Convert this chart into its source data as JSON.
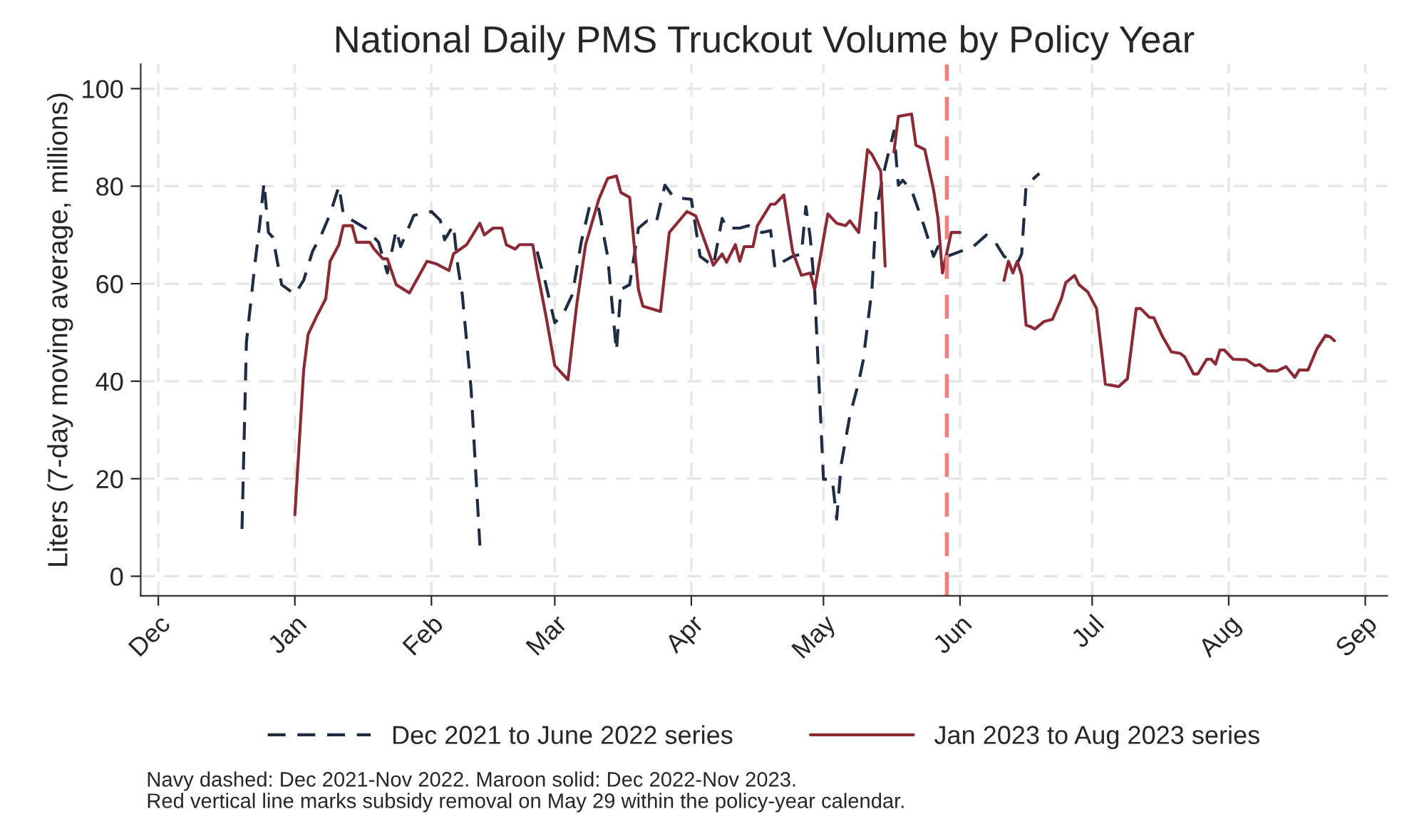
{
  "chart_data": {
    "type": "line",
    "title": "National Daily PMS Truckout Volume by Policy Year",
    "ylabel": "Liters (7-day moving average, millions)",
    "xlim": [
      "2022-11-27",
      "2023-09-06"
    ],
    "xticks": [
      {
        "value": "2022-12-01",
        "label": "Dec"
      },
      {
        "value": "2023-01-01",
        "label": "Jan"
      },
      {
        "value": "2023-02-01",
        "label": "Feb"
      },
      {
        "value": "2023-03-01",
        "label": "Mar"
      },
      {
        "value": "2023-04-01",
        "label": "Apr"
      },
      {
        "value": "2023-05-01",
        "label": "May"
      },
      {
        "value": "2023-06-01",
        "label": "Jun"
      },
      {
        "value": "2023-07-01",
        "label": "Jul"
      },
      {
        "value": "2023-08-01",
        "label": "Aug"
      },
      {
        "value": "2023-09-01",
        "label": "Sep"
      }
    ],
    "ylim": [
      -4,
      105
    ],
    "yticks": [
      0,
      20,
      40,
      60,
      80,
      100
    ],
    "grid": true,
    "legend": "bottom",
    "series": [
      {
        "name": "Dec 2021 to June 2022 series",
        "color": "#1f2d44",
        "line_style": "dashed",
        "x": [
          "2022-12-20",
          "2022-12-21",
          "2022-12-23",
          "2022-12-24",
          "2022-12-25",
          "2022-12-26",
          "2022-12-27",
          "2022-12-29",
          "2023-01-01",
          "2023-01-03",
          "2023-01-05",
          "2023-01-07",
          "2023-01-09",
          "2023-01-11",
          "2023-01-12",
          "2023-01-14",
          "2023-01-17",
          "2023-01-20",
          "2023-01-22",
          "2023-01-24",
          "2023-01-25",
          "2023-01-28",
          "2023-02-01",
          "2023-02-03",
          "2023-02-04",
          "2023-02-06",
          "2023-02-07",
          "2023-02-08",
          "2023-02-10",
          "2023-02-12",
          "2023-02-18",
          "2023-02-25",
          "2023-02-27",
          "2023-03-01",
          "2023-03-03",
          "2023-03-05",
          "2023-03-07",
          "2023-03-09",
          "2023-03-11",
          "2023-03-13",
          "2023-03-15",
          "2023-03-16",
          "2023-03-18",
          "2023-03-20",
          "2023-03-22",
          "2023-03-24",
          "2023-03-26",
          "2023-03-28",
          "2023-04-01",
          "2023-04-03",
          "2023-04-06",
          "2023-04-08",
          "2023-04-09",
          "2023-04-12",
          "2023-04-14",
          "2023-04-17",
          "2023-04-19",
          "2023-04-20",
          "2023-04-22",
          "2023-04-24",
          "2023-04-26",
          "2023-04-27",
          "2023-04-28",
          "2023-04-29",
          "2023-05-01",
          "2023-05-03",
          "2023-05-04",
          "2023-05-05",
          "2023-05-07",
          "2023-05-09",
          "2023-05-10",
          "2023-05-12",
          "2023-05-13",
          "2023-05-15",
          "2023-05-17",
          "2023-05-18",
          "2023-05-19",
          "2023-05-21",
          "2023-05-24",
          "2023-05-26",
          "2023-05-27",
          "2023-05-29",
          "2023-06-01",
          "2023-06-04",
          "2023-06-07",
          "2023-06-09",
          "2023-06-11",
          "2023-06-14",
          "2023-06-15",
          "2023-06-16",
          "2023-06-19"
        ],
        "values": [
          9.7,
          48,
          64.6,
          72,
          80.7,
          70.5,
          69.5,
          59.8,
          57.8,
          60.7,
          66.6,
          70,
          74.3,
          80,
          74.3,
          73,
          71.4,
          68.5,
          62.2,
          71,
          67.6,
          74,
          74.8,
          73,
          69,
          72,
          63.6,
          57.8,
          38.4,
          6.3,
          null,
          66.6,
          59.8,
          52,
          53.9,
          57.8,
          68.5,
          76.3,
          75.3,
          65.6,
          46.2,
          58.8,
          59.8,
          71.4,
          72.9,
          72.4,
          80.2,
          77.7,
          77.3,
          65.6,
          63.6,
          73.4,
          71.4,
          71.4,
          71.9,
          70.5,
          70.9,
          63.1,
          64.6,
          65.6,
          66.1,
          75.8,
          69.5,
          58.8,
          19.9,
          19.9,
          11.7,
          22.8,
          33,
          39.8,
          44.2,
          58.8,
          75.3,
          84,
          91.3,
          80.2,
          81.2,
          79.2,
          71.4,
          65.6,
          67.6,
          65.6,
          66.6,
          67.6,
          70,
          68.5,
          65.6,
          64.1,
          66.1,
          80.2,
          82.6
        ]
      },
      {
        "name": "Jan 2023 to Aug 2023 series",
        "color": "#8b2a35",
        "line_style": "solid",
        "x": [
          "2023-01-01",
          "2023-01-03",
          "2023-01-04",
          "2023-01-06",
          "2023-01-08",
          "2023-01-09",
          "2023-01-11",
          "2023-01-12",
          "2023-01-14",
          "2023-01-15",
          "2023-01-18",
          "2023-01-19",
          "2023-01-21",
          "2023-01-22",
          "2023-01-24",
          "2023-01-27",
          "2023-01-31",
          "2023-02-02",
          "2023-02-05",
          "2023-02-06",
          "2023-02-09",
          "2023-02-12",
          "2023-02-13",
          "2023-02-15",
          "2023-02-17",
          "2023-02-18",
          "2023-02-20",
          "2023-02-21",
          "2023-02-24",
          "2023-02-25",
          "2023-02-27",
          "2023-03-01",
          "2023-03-04",
          "2023-03-06",
          "2023-03-08",
          "2023-03-11",
          "2023-03-13",
          "2023-03-15",
          "2023-03-16",
          "2023-03-18",
          "2023-03-20",
          "2023-03-21",
          "2023-03-25",
          "2023-03-27",
          "2023-03-31",
          "2023-04-02",
          "2023-04-06",
          "2023-04-08",
          "2023-04-09",
          "2023-04-11",
          "2023-04-12",
          "2023-04-13",
          "2023-04-15",
          "2023-04-16",
          "2023-04-19",
          "2023-04-20",
          "2023-04-22",
          "2023-04-24",
          "2023-04-26",
          "2023-04-28",
          "2023-04-29",
          "2023-05-02",
          "2023-05-04",
          "2023-05-06",
          "2023-05-07",
          "2023-05-09",
          "2023-05-11",
          "2023-05-12",
          "2023-05-14",
          "2023-05-15",
          "2023-05-16",
          "2023-05-17",
          "2023-05-18",
          "2023-05-21",
          "2023-05-22",
          "2023-05-24",
          "2023-05-26",
          "2023-05-27",
          "2023-05-28",
          "2023-05-30",
          "2023-06-01",
          "2023-06-05",
          "2023-06-11",
          "2023-06-12",
          "2023-06-13",
          "2023-06-14",
          "2023-06-15",
          "2023-06-16",
          "2023-06-17",
          "2023-06-18",
          "2023-06-20",
          "2023-06-22",
          "2023-06-24",
          "2023-06-25",
          "2023-06-27",
          "2023-06-28",
          "2023-06-30",
          "2023-07-02",
          "2023-07-04",
          "2023-07-07",
          "2023-07-09",
          "2023-07-11",
          "2023-07-12",
          "2023-07-14",
          "2023-07-15",
          "2023-07-17",
          "2023-07-19",
          "2023-07-21",
          "2023-07-22",
          "2023-07-24",
          "2023-07-25",
          "2023-07-27",
          "2023-07-28",
          "2023-07-29",
          "2023-07-30",
          "2023-07-31",
          "2023-08-02",
          "2023-08-05",
          "2023-08-07",
          "2023-08-08",
          "2023-08-10",
          "2023-08-12",
          "2023-08-14",
          "2023-08-16",
          "2023-08-17",
          "2023-08-19",
          "2023-08-21",
          "2023-08-23",
          "2023-08-24",
          "2023-08-25"
        ],
        "values": [
          12.6,
          42.3,
          49.6,
          53.4,
          56.9,
          64.6,
          68,
          71.9,
          71.9,
          68.5,
          68.5,
          67.1,
          65.1,
          65.1,
          59.8,
          58.1,
          64.6,
          64.1,
          62.7,
          66.1,
          68,
          72.4,
          70,
          71.4,
          71.4,
          68,
          67.1,
          68,
          68,
          62.7,
          53.4,
          43.2,
          40.3,
          55.8,
          68,
          77.3,
          81.6,
          82.1,
          78.7,
          77.7,
          58.8,
          55.4,
          54.3,
          70.5,
          74.8,
          73.9,
          63.8,
          66.1,
          64.4,
          68,
          64.6,
          67.6,
          67.6,
          71.9,
          76.3,
          76.3,
          78.2,
          66.6,
          61.7,
          62.2,
          58.8,
          74.3,
          72.4,
          71.9,
          72.9,
          70.5,
          87.5,
          86.5,
          83.1,
          63.6,
          null,
          87,
          94.3,
          94.8,
          88.4,
          87.5,
          79.2,
          73.4,
          62.2,
          70.5,
          70.5,
          null,
          60.7,
          64.6,
          62.2,
          64.6,
          61.7,
          51.5,
          51.2,
          50.7,
          52.2,
          52.7,
          56.9,
          60.2,
          61.7,
          59.8,
          58.3,
          54.9,
          39.4,
          38.9,
          40.5,
          54.9,
          54.9,
          53.1,
          53,
          49.1,
          46,
          45.7,
          45,
          41.5,
          41.5,
          44.5,
          44.5,
          43.5,
          46.4,
          46.4,
          44.5,
          44.4,
          43.2,
          43.4,
          42.1,
          42.1,
          43,
          40.8,
          42.3,
          42.3,
          46.6,
          49.4,
          49.1,
          48.3
        ]
      }
    ],
    "ref_lines": [
      {
        "axis": "x",
        "value": "2023-05-29",
        "color": "#f08080",
        "line_style": "dashed"
      }
    ],
    "annotations": [
      "Navy dashed: Dec 2021-Nov 2022. Maroon solid: Dec 2022-Nov 2023.",
      "Red vertical line marks subsidy removal on May 29 within the policy-year calendar."
    ]
  }
}
